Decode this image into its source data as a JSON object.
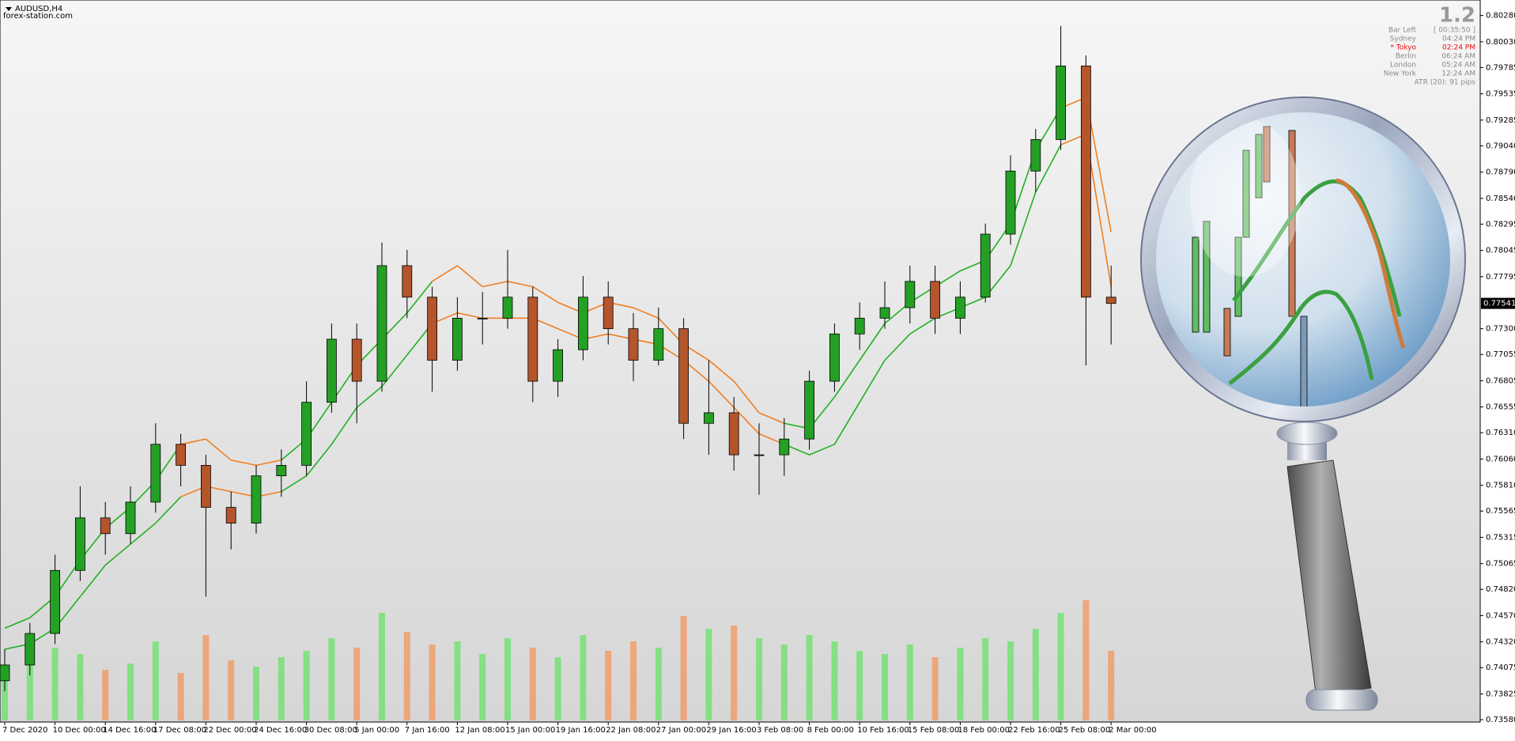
{
  "chart_data": {
    "type": "candlestick",
    "symbol": "AUDUSD,H4",
    "source": "forex-station.com",
    "categories": [
      "7 Dec 2020",
      null,
      "10 Dec 00:00",
      null,
      "14 Dec 16:00",
      null,
      "17 Dec 08:00",
      null,
      "22 Dec 00:00",
      null,
      "24 Dec 16:00",
      null,
      "30 Dec 08:00",
      null,
      "5 Jan 00:00",
      null,
      "7 Jan 16:00",
      null,
      "12 Jan 08:00",
      null,
      "15 Jan 00:00",
      null,
      "19 Jan 16:00",
      null,
      "22 Jan 08:00",
      null,
      "27 Jan 00:00",
      null,
      "29 Jan 16:00",
      null,
      "3 Feb 08:00",
      null,
      "8 Feb 00:00",
      null,
      "10 Feb 16:00",
      null,
      "15 Feb 08:00",
      null,
      "18 Feb 00:00",
      null,
      "22 Feb 16:00",
      null,
      "25 Feb 08:00",
      null,
      "2 Mar 00:00"
    ],
    "candles": [
      [
        0.7395,
        0.7425,
        0.7385,
        0.741
      ],
      [
        0.741,
        0.745,
        0.74,
        0.744
      ],
      [
        0.744,
        0.7515,
        0.743,
        0.75
      ],
      [
        0.75,
        0.758,
        0.749,
        0.755
      ],
      [
        0.755,
        0.7565,
        0.7515,
        0.7535
      ],
      [
        0.7535,
        0.758,
        0.7525,
        0.7565
      ],
      [
        0.7565,
        0.764,
        0.7555,
        0.762
      ],
      [
        0.762,
        0.763,
        0.758,
        0.76
      ],
      [
        0.76,
        0.761,
        0.7475,
        0.756
      ],
      [
        0.756,
        0.7575,
        0.752,
        0.7545
      ],
      [
        0.7545,
        0.76,
        0.7535,
        0.759
      ],
      [
        0.759,
        0.7615,
        0.757,
        0.76
      ],
      [
        0.76,
        0.768,
        0.759,
        0.766
      ],
      [
        0.766,
        0.7735,
        0.765,
        0.772
      ],
      [
        0.772,
        0.7735,
        0.764,
        0.768
      ],
      [
        0.768,
        0.7812,
        0.767,
        0.779
      ],
      [
        0.779,
        0.7805,
        0.774,
        0.776
      ],
      [
        0.776,
        0.777,
        0.767,
        0.77
      ],
      [
        0.77,
        0.776,
        0.769,
        0.774
      ],
      [
        0.774,
        0.7765,
        0.7715,
        0.774
      ],
      [
        0.774,
        0.7805,
        0.773,
        0.776
      ],
      [
        0.776,
        0.777,
        0.766,
        0.768
      ],
      [
        0.768,
        0.772,
        0.7665,
        0.771
      ],
      [
        0.771,
        0.778,
        0.77,
        0.776
      ],
      [
        0.776,
        0.7775,
        0.7715,
        0.773
      ],
      [
        0.773,
        0.7745,
        0.768,
        0.77
      ],
      [
        0.77,
        0.775,
        0.7695,
        0.773
      ],
      [
        0.773,
        0.774,
        0.7625,
        0.764
      ],
      [
        0.764,
        0.77,
        0.761,
        0.765
      ],
      [
        0.765,
        0.7665,
        0.7595,
        0.761
      ],
      [
        0.761,
        0.764,
        0.7572,
        0.761
      ],
      [
        0.761,
        0.7645,
        0.759,
        0.7625
      ],
      [
        0.7625,
        0.769,
        0.7615,
        0.768
      ],
      [
        0.768,
        0.7735,
        0.767,
        0.7725
      ],
      [
        0.7725,
        0.7755,
        0.771,
        0.774
      ],
      [
        0.774,
        0.7775,
        0.773,
        0.775
      ],
      [
        0.775,
        0.779,
        0.7735,
        0.7775
      ],
      [
        0.7775,
        0.779,
        0.7725,
        0.774
      ],
      [
        0.774,
        0.7775,
        0.7725,
        0.776
      ],
      [
        0.776,
        0.783,
        0.7755,
        0.782
      ],
      [
        0.782,
        0.7895,
        0.781,
        0.788
      ],
      [
        0.788,
        0.792,
        0.786,
        0.791
      ],
      [
        0.791,
        0.8018,
        0.79,
        0.798
      ],
      [
        0.798,
        0.799,
        0.7695,
        0.776
      ],
      [
        0.776,
        0.779,
        0.7715,
        0.7754
      ]
    ],
    "bull_color": "#24a024",
    "bear_color": "#b4552c",
    "series": [
      {
        "color": "#22b022",
        "down_color": "#f07f22",
        "values": [
          0.7445,
          0.7455,
          0.7475,
          0.751,
          0.754,
          0.756,
          0.7585,
          0.762,
          0.7625,
          0.7605,
          0.76,
          0.7605,
          0.7625,
          0.766,
          0.7695,
          0.772,
          0.7745,
          0.7775,
          0.779,
          0.777,
          0.7775,
          0.777,
          0.7755,
          0.7745,
          0.7755,
          0.775,
          0.774,
          0.7715,
          0.77,
          0.768,
          0.765,
          0.764,
          0.7635,
          0.7665,
          0.77,
          0.7735,
          0.7755,
          0.777,
          0.7785,
          0.7795,
          0.783,
          0.79,
          0.794,
          0.795,
          0.7822
        ]
      },
      {
        "color": "#22b022",
        "down_color": "#f07f22",
        "values": [
          0.7425,
          0.743,
          0.7445,
          0.7475,
          0.7505,
          0.7525,
          0.7545,
          0.757,
          0.758,
          0.7575,
          0.757,
          0.7575,
          0.759,
          0.762,
          0.7655,
          0.7675,
          0.7705,
          0.7735,
          0.7745,
          0.774,
          0.774,
          0.774,
          0.773,
          0.772,
          0.7725,
          0.772,
          0.7715,
          0.77,
          0.768,
          0.7655,
          0.763,
          0.762,
          0.761,
          0.762,
          0.766,
          0.77,
          0.7725,
          0.774,
          0.775,
          0.776,
          0.779,
          0.786,
          0.7905,
          0.7915,
          0.777
        ]
      }
    ],
    "down": [
      false,
      false,
      false,
      false,
      false,
      false,
      false,
      false,
      true,
      true,
      true,
      true,
      false,
      false,
      false,
      false,
      false,
      false,
      true,
      true,
      true,
      true,
      true,
      true,
      true,
      true,
      true,
      true,
      true,
      true,
      true,
      true,
      false,
      false,
      false,
      false,
      false,
      false,
      false,
      false,
      false,
      false,
      false,
      true,
      true
    ],
    "volume": {
      "values": [
        1400,
        1900,
        2300,
        2100,
        1600,
        1800,
        2500,
        1500,
        2700,
        1900,
        1700,
        2000,
        2200,
        2600,
        2300,
        3400,
        2800,
        2400,
        2500,
        2100,
        2600,
        2300,
        2000,
        2700,
        2200,
        2500,
        2300,
        3300,
        2900,
        3000,
        2600,
        2400,
        2700,
        2500,
        2200,
        2100,
        2400,
        2000,
        2300,
        2600,
        2500,
        2900,
        3400,
        3800,
        2200
      ],
      "vlim": [
        0,
        5000
      ]
    },
    "ylim": [
      0.73565,
      0.80405
    ],
    "yticks": [
      {
        "value": 0.8028,
        "label": "0.80280"
      },
      {
        "value": 0.8003,
        "label": "0.80030"
      },
      {
        "value": 0.79785,
        "label": "0.79785"
      },
      {
        "value": 0.79535,
        "label": "0.79535"
      },
      {
        "value": 0.79285,
        "label": "0.79285"
      },
      {
        "value": 0.7904,
        "label": "0.79040"
      },
      {
        "value": 0.7879,
        "label": "0.78790"
      },
      {
        "value": 0.7854,
        "label": "0.78540"
      },
      {
        "value": 0.78295,
        "label": "0.78295"
      },
      {
        "value": 0.78045,
        "label": "0.78045"
      },
      {
        "value": 0.77795,
        "label": "0.77795"
      },
      {
        "value": 0.773,
        "label": "0.77300"
      },
      {
        "value": 0.77055,
        "label": "0.77055"
      },
      {
        "value": 0.76805,
        "label": "0.76805"
      },
      {
        "value": 0.76555,
        "label": "0.76555"
      },
      {
        "value": 0.7631,
        "label": "0.76310"
      },
      {
        "value": 0.7606,
        "label": "0.76060"
      },
      {
        "value": 0.7581,
        "label": "0.75810"
      },
      {
        "value": 0.75565,
        "label": "0.75565"
      },
      {
        "value": 0.75315,
        "label": "0.75315"
      },
      {
        "value": 0.75065,
        "label": "0.75065"
      },
      {
        "value": 0.7482,
        "label": "0.74820"
      },
      {
        "value": 0.7457,
        "label": "0.74570"
      },
      {
        "value": 0.7432,
        "label": "0.74320"
      },
      {
        "value": 0.74075,
        "label": "0.74075"
      },
      {
        "value": 0.73825,
        "label": "0.73825"
      },
      {
        "value": 0.7358,
        "label": "0.73580"
      }
    ],
    "current_price": 0.77541,
    "info_panel": {
      "spread": "1.2",
      "rows": [
        {
          "label": "Bar Left",
          "value": "[ 00:35:50 ]",
          "color": "#8a8a8a"
        },
        {
          "label": "Sydney",
          "value": "04:24 PM",
          "color": "#8a8a8a"
        },
        {
          "label": "* Tokyo",
          "value": "02:24 PM",
          "color": "#e01010"
        },
        {
          "label": "Berlin",
          "value": "06:24 AM",
          "color": "#8a8a8a"
        },
        {
          "label": "London",
          "value": "05:24 AM",
          "color": "#8a8a8a"
        },
        {
          "label": "New York",
          "value": "12:24 AM",
          "color": "#8a8a8a"
        }
      ],
      "atr": "ATR (20): 91 pips"
    }
  }
}
